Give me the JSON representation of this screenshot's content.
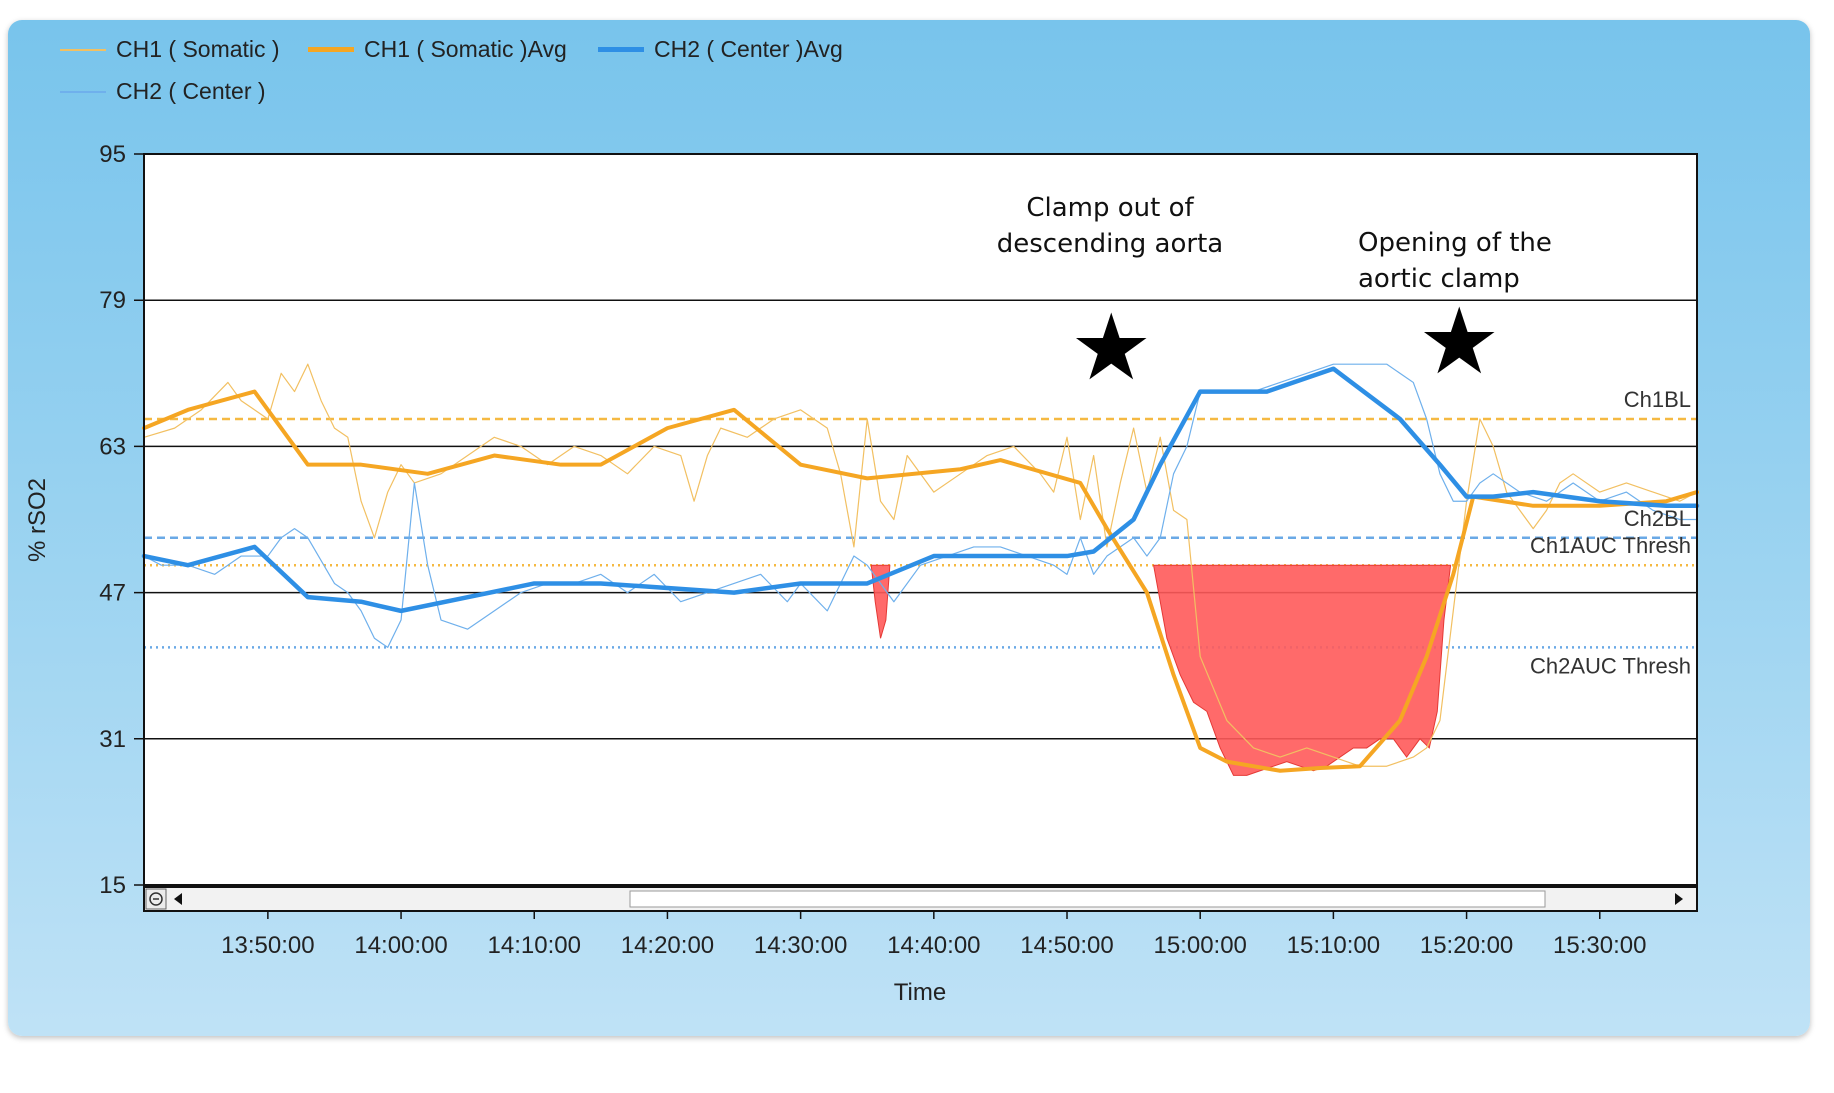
{
  "chart_data": {
    "type": "line",
    "title": "",
    "xlabel": "Time",
    "ylabel": "% rSO2",
    "ylim": [
      15,
      95
    ],
    "xlim_minutes": [
      820.7,
      937.3
    ],
    "yticks": [
      15,
      31,
      47,
      63,
      79,
      95
    ],
    "xtick_labels": [
      "13:50:00",
      "14:00:00",
      "14:10:00",
      "14:20:00",
      "14:30:00",
      "14:40:00",
      "14:50:00",
      "15:00:00",
      "15:10:00",
      "15:20:00",
      "15:30:00"
    ],
    "xtick_minutes": [
      830,
      840,
      850,
      860,
      870,
      880,
      890,
      900,
      910,
      920,
      930
    ],
    "grid": true,
    "legend": [
      "CH1 ( Somatic )",
      "CH1 ( Somatic )Avg",
      "CH2 ( Center  )Avg",
      "CH2 ( Center  )"
    ],
    "reference_lines": [
      {
        "name": "Ch1BL",
        "value": 66,
        "color": "#f5b942",
        "style": "dashed"
      },
      {
        "name": "Ch2BL",
        "value": 53,
        "color": "#6aa9e6",
        "style": "dashed"
      },
      {
        "name": "Ch1AUC Thresh",
        "value": 50,
        "color": "#f5b942",
        "style": "dotted"
      },
      {
        "name": "Ch2AUC Thresh",
        "value": 41,
        "color": "#6aa9e6",
        "style": "dotted"
      }
    ],
    "series": [
      {
        "name": "CH1 ( Somatic )",
        "color": "#f2c062",
        "width": 1.2,
        "x": [
          820.7,
          823,
          825,
          827,
          828,
          830,
          831,
          832,
          833,
          834,
          835,
          836,
          837,
          838,
          839,
          840,
          841,
          843,
          845,
          847,
          849,
          851,
          853,
          855,
          857,
          859,
          861,
          862,
          863,
          864,
          866,
          868,
          870,
          872,
          873,
          874,
          875,
          876,
          877,
          878,
          880,
          882,
          884,
          886,
          888,
          889,
          890,
          891,
          892,
          893,
          894,
          895,
          896,
          897,
          898,
          899,
          900,
          902,
          904,
          906,
          908,
          910,
          912,
          914,
          916,
          917,
          918,
          919,
          920,
          921,
          922,
          923,
          924,
          925,
          926,
          927,
          928,
          930,
          932,
          934,
          936,
          937.3
        ],
        "y": [
          64,
          65,
          67,
          70,
          68,
          66,
          71,
          69,
          72,
          68,
          65,
          64,
          57,
          53,
          58,
          61,
          59,
          60,
          62,
          64,
          63,
          61,
          63,
          62,
          60,
          63,
          62,
          57,
          62,
          65,
          64,
          66,
          67,
          65,
          60,
          52,
          66,
          57,
          55,
          62,
          58,
          60,
          62,
          63,
          60,
          58,
          64,
          55,
          62,
          52,
          59,
          65,
          58,
          64,
          56,
          55,
          40,
          33,
          30,
          29,
          30,
          29,
          28,
          28,
          29,
          30,
          33,
          45,
          57,
          66,
          63,
          58,
          56,
          54,
          56,
          59,
          60,
          58,
          59,
          58,
          57,
          58
        ]
      },
      {
        "name": "CH1 ( Somatic )Avg",
        "color": "#f5a623",
        "width": 4,
        "x": [
          820.7,
          824,
          829,
          833,
          837,
          842,
          847,
          852,
          855,
          860,
          865,
          870,
          875,
          882,
          885,
          891,
          893,
          896,
          898,
          900,
          902,
          906,
          909,
          912,
          915,
          917,
          919,
          920.5,
          925,
          930,
          935,
          937.3
        ],
        "y": [
          65,
          67,
          69,
          61,
          61,
          60,
          62,
          61,
          61,
          65,
          67,
          61,
          59.5,
          60.5,
          61.5,
          59,
          54,
          47,
          38,
          30,
          28.5,
          27.5,
          27.8,
          28,
          33,
          40,
          49,
          57.5,
          56.5,
          56.5,
          57,
          58
        ]
      },
      {
        "name": "CH2 ( Center  )Avg",
        "color": "#2e8fe5",
        "width": 4.5,
        "x": [
          820.7,
          824,
          829,
          833,
          837,
          840,
          845,
          850,
          855,
          860,
          865,
          870,
          875,
          880,
          885,
          890,
          892,
          895,
          897,
          900,
          903,
          905,
          910,
          915,
          918,
          920,
          922,
          925,
          930,
          935,
          937.3
        ],
        "y": [
          51,
          50,
          52,
          46.5,
          46,
          45,
          46.5,
          48,
          48,
          47.5,
          47,
          48,
          48,
          51,
          51,
          51,
          51.5,
          55,
          61,
          69,
          69,
          69,
          71.5,
          66,
          61,
          57.5,
          57.5,
          58,
          57,
          56.5,
          56.5
        ]
      },
      {
        "name": "CH2 ( Center  )",
        "color": "#6fb0ec",
        "width": 1.2,
        "x": [
          820.7,
          822,
          824,
          826,
          828,
          830,
          831,
          832,
          833,
          835,
          836,
          837,
          838,
          839,
          840,
          841,
          842,
          843,
          845,
          847,
          849,
          851,
          853,
          855,
          857,
          859,
          861,
          863,
          865,
          867,
          869,
          870,
          872,
          873,
          874,
          875,
          877,
          879,
          881,
          883,
          885,
          887,
          889,
          890,
          891,
          892,
          893,
          894,
          895,
          896,
          897,
          898,
          899,
          900,
          902,
          904,
          906,
          908,
          910,
          912,
          914,
          916,
          917,
          918,
          919,
          920,
          921,
          922,
          924,
          926,
          928,
          930,
          932,
          934,
          936,
          937.3
        ],
        "y": [
          51,
          50,
          50,
          49,
          51,
          51,
          53,
          54,
          53,
          48,
          47,
          45,
          42,
          41,
          44,
          59,
          50,
          44,
          43,
          45,
          47,
          48,
          48,
          49,
          47,
          49,
          46,
          47,
          48,
          49,
          46,
          48,
          45,
          48,
          51,
          50,
          46,
          50,
          51,
          52,
          52,
          51,
          50,
          49,
          53,
          49,
          51,
          52,
          53,
          51,
          53,
          60,
          63,
          69,
          69,
          69,
          70,
          71,
          72,
          72,
          72,
          70,
          66,
          60,
          57,
          57,
          59,
          60,
          58,
          57,
          59,
          57,
          58,
          56,
          55,
          55
        ]
      }
    ],
    "auc_regions": [
      {
        "name": "ch1-auc-region-main",
        "threshold": 50,
        "x": [
          896.5,
          897.5,
          898.5,
          899.5,
          900.5,
          901.5,
          902.5,
          903.5,
          904.5,
          905.5,
          906.5,
          907.5,
          908.5,
          909.5,
          910.5,
          911.5,
          912.5,
          913.5,
          914.5,
          915.5,
          916.5,
          917.2,
          917.8,
          918.3,
          918.8
        ],
        "y": [
          50,
          42,
          38,
          35,
          34,
          30,
          27,
          27,
          27.5,
          28,
          28.5,
          28,
          27.5,
          28,
          29,
          30,
          30,
          31,
          31,
          29,
          31,
          30,
          34,
          44,
          50
        ]
      },
      {
        "name": "ch1-auc-region-small",
        "threshold": 50,
        "x": [
          875.3,
          875.6,
          876,
          876.4,
          876.7
        ],
        "y": [
          50,
          46,
          42,
          44,
          50
        ]
      }
    ],
    "annotations": [
      {
        "text": "Clamp out of\ndescending aorta",
        "marker": "★"
      },
      {
        "text": "Opening of the\naortic clamp",
        "marker": "★"
      }
    ]
  }
}
